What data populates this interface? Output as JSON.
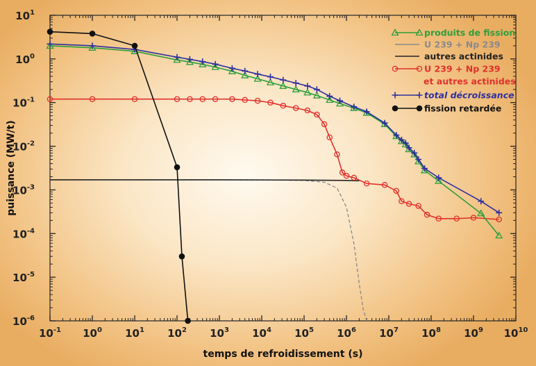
{
  "chart_data": {
    "type": "line",
    "title": "",
    "xlabel": "temps de refroidissement (s)",
    "ylabel": "puissance (MW/t)",
    "x_scale": "log",
    "y_scale": "log",
    "xlim": [
      0.1,
      10000000000
    ],
    "ylim": [
      1e-06,
      10
    ],
    "grid": false,
    "legend_position": "top-right",
    "x_ticks": [
      {
        "value": 0.1,
        "base": "10",
        "exp": "-1"
      },
      {
        "value": 1,
        "base": "10",
        "exp": "0"
      },
      {
        "value": 10,
        "base": "10",
        "exp": "1"
      },
      {
        "value": 100,
        "base": "10",
        "exp": "2"
      },
      {
        "value": 1000,
        "base": "10",
        "exp": "3"
      },
      {
        "value": 10000,
        "base": "10",
        "exp": "4"
      },
      {
        "value": 100000,
        "base": "10",
        "exp": "5"
      },
      {
        "value": 1000000,
        "base": "10",
        "exp": "6"
      },
      {
        "value": 10000000,
        "base": "10",
        "exp": "7"
      },
      {
        "value": 100000000,
        "base": "10",
        "exp": "8"
      },
      {
        "value": 1000000000,
        "base": "10",
        "exp": "9"
      },
      {
        "value": 10000000000,
        "base": "10",
        "exp": "10"
      }
    ],
    "y_ticks": [
      {
        "value": 10,
        "base": "10",
        "exp": "1"
      },
      {
        "value": 1,
        "base": "10",
        "exp": "0"
      },
      {
        "value": 0.1,
        "base": "10",
        "exp": "-1"
      },
      {
        "value": 0.01,
        "base": "10",
        "exp": "-2"
      },
      {
        "value": 0.001,
        "base": "10",
        "exp": "-3"
      },
      {
        "value": 0.0001,
        "base": "10",
        "exp": "-4"
      },
      {
        "value": 1e-05,
        "base": "10",
        "exp": "-5"
      },
      {
        "value": 1e-06,
        "base": "10",
        "exp": "-6"
      }
    ],
    "series": [
      {
        "name": "produits de fission",
        "color": "#2e9e3c",
        "marker": "triangle",
        "line_style": "solid",
        "x": [
          0.1,
          1,
          10,
          100,
          200,
          400,
          800,
          2000,
          4000,
          8000,
          16000,
          32000,
          64000,
          120000,
          200000,
          400000,
          700000,
          1500000,
          3000000,
          8000000,
          15000000,
          20000000,
          25000000,
          30000000,
          40000000,
          50000000,
          70000000,
          150000000,
          1500000000,
          4000000000
        ],
        "y": [
          2.0,
          1.8,
          1.5,
          0.95,
          0.85,
          0.75,
          0.65,
          0.52,
          0.42,
          0.35,
          0.29,
          0.24,
          0.2,
          0.17,
          0.145,
          0.115,
          0.095,
          0.075,
          0.058,
          0.032,
          0.017,
          0.013,
          0.011,
          0.0085,
          0.0065,
          0.0045,
          0.0028,
          0.0016,
          0.00029,
          9e-05
        ]
      },
      {
        "name": "U 239 + Np 239",
        "color": "#8a8a8a",
        "marker": "none",
        "line_style": "dashed",
        "x": [
          0.1,
          10000,
          100000,
          300000,
          600000,
          1000000,
          1500000,
          2000000,
          2500000,
          3000000
        ],
        "y": [
          0.0017,
          0.0017,
          0.00165,
          0.0015,
          0.0011,
          0.0004,
          6e-05,
          7e-06,
          1.8e-06,
          1e-06
        ]
      },
      {
        "name": "autres actinides",
        "color": "#222222",
        "marker": "none",
        "line_style": "solid",
        "x": [
          0.1,
          1000,
          100000,
          1000000,
          2000000
        ],
        "y": [
          0.0017,
          0.0017,
          0.00168,
          0.00165,
          0.00162
        ]
      },
      {
        "name": "U 239 + Np 239 et autres actinides",
        "color": "#e0312c",
        "marker": "circle",
        "line_style": "solid",
        "x": [
          0.1,
          1,
          10,
          100,
          200,
          400,
          800,
          2000,
          4000,
          8000,
          16000,
          32000,
          64000,
          120000,
          200000,
          300000,
          400000,
          600000,
          800000,
          1000000,
          1500000,
          3000000,
          8000000,
          15000000,
          20000000,
          30000000,
          50000000,
          80000000,
          150000000,
          400000000,
          1000000000,
          4000000000
        ],
        "y": [
          0.12,
          0.12,
          0.12,
          0.12,
          0.12,
          0.12,
          0.12,
          0.12,
          0.115,
          0.11,
          0.1,
          0.085,
          0.075,
          0.066,
          0.053,
          0.032,
          0.016,
          0.0065,
          0.0025,
          0.0021,
          0.0019,
          0.0014,
          0.0013,
          0.00095,
          0.00055,
          0.00048,
          0.00043,
          0.00027,
          0.00022,
          0.00022,
          0.00023,
          0.00021
        ]
      },
      {
        "name": "total décroissance",
        "color": "#2f2f9e",
        "marker": "plus",
        "line_style": "solid",
        "x": [
          0.1,
          1,
          10,
          100,
          200,
          400,
          800,
          2000,
          4000,
          8000,
          16000,
          32000,
          64000,
          120000,
          200000,
          400000,
          700000,
          1500000,
          3000000,
          8000000,
          15000000,
          20000000,
          25000000,
          30000000,
          40000000,
          50000000,
          70000000,
          150000000,
          1500000000,
          4000000000
        ],
        "y": [
          2.2,
          2.0,
          1.65,
          1.1,
          0.98,
          0.87,
          0.76,
          0.61,
          0.53,
          0.45,
          0.39,
          0.33,
          0.28,
          0.24,
          0.2,
          0.14,
          0.11,
          0.08,
          0.062,
          0.034,
          0.018,
          0.014,
          0.0118,
          0.0092,
          0.007,
          0.005,
          0.0031,
          0.0019,
          0.00055,
          0.0003
        ]
      },
      {
        "name": "fission retardée",
        "color": "#111111",
        "marker": "filled-circle",
        "line_style": "solid",
        "x": [
          0.1,
          1,
          10,
          100,
          130,
          180
        ],
        "y": [
          4.2,
          3.8,
          2.0,
          0.0033,
          3e-05,
          1e-06
        ]
      }
    ],
    "legend": [
      {
        "label": "produits de fission",
        "color": "#2e9e3c",
        "marker": "triangle",
        "line": "solid"
      },
      {
        "label": "U 239 + Np 239",
        "color": "#8a8a8a",
        "marker": "none",
        "line": "solid"
      },
      {
        "label": "autres actinides",
        "color": "#222222",
        "marker": "none",
        "line": "solid"
      },
      {
        "label": "U 239 + Np 239",
        "color": "#e0312c",
        "marker": "circle",
        "line": "solid"
      },
      {
        "label": "et autres actinides",
        "color": "#e0312c",
        "marker": "none",
        "line": "none"
      },
      {
        "label": "total décroissance",
        "color": "#2f2f9e",
        "marker": "plus",
        "line": "solid"
      },
      {
        "label": "fission retardée",
        "color": "#111111",
        "marker": "filled-circle",
        "line": "solid"
      }
    ]
  }
}
